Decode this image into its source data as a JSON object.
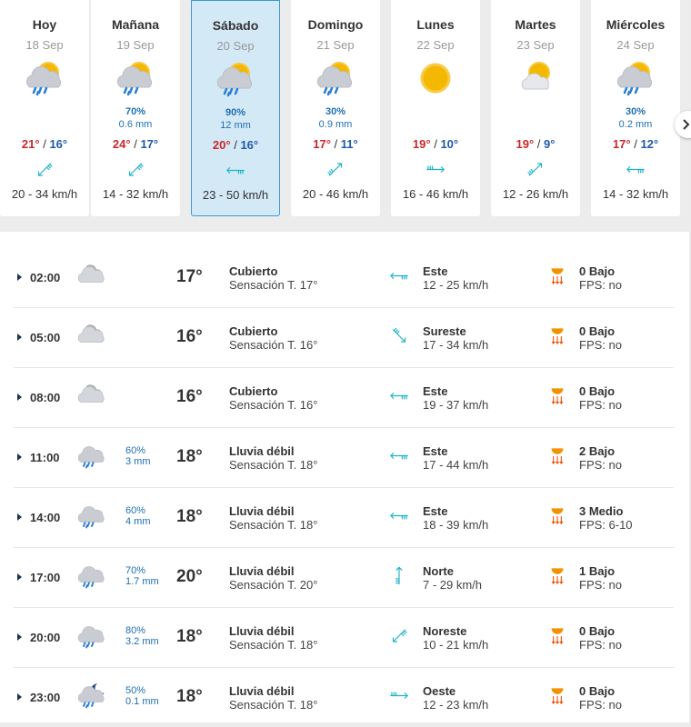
{
  "temp_sep": "/",
  "days": [
    {
      "name": "Hoy",
      "date": "18 Sep",
      "max": "21°",
      "min": "16°",
      "wind": "20 - 34 km/h"
    },
    {
      "name": "Mañana",
      "date": "19 Sep",
      "precip_pct": "70%",
      "precip_mm": "0.6 mm",
      "max": "24°",
      "min": "17°",
      "wind": "14 - 32 km/h"
    },
    {
      "name": "Sábado",
      "date": "20 Sep",
      "precip_pct": "90%",
      "precip_mm": "12 mm",
      "max": "20°",
      "min": "16°",
      "wind": "23 - 50 km/h"
    },
    {
      "name": "Domingo",
      "date": "21 Sep",
      "precip_pct": "30%",
      "precip_mm": "0.9 mm",
      "max": "17°",
      "min": "11°",
      "wind": "20 - 46 km/h"
    },
    {
      "name": "Lunes",
      "date": "22 Sep",
      "max": "19°",
      "min": "10°",
      "wind": "16 - 46 km/h"
    },
    {
      "name": "Martes",
      "date": "23 Sep",
      "max": "19°",
      "min": "9°",
      "wind": "12 - 26 km/h"
    },
    {
      "name": "Miércoles",
      "date": "24 Sep",
      "precip_pct": "30%",
      "precip_mm": "0.2 mm",
      "max": "17°",
      "min": "12°",
      "wind": "14 - 32 km/h"
    }
  ],
  "hours": [
    {
      "time": "02:00",
      "temp": "17°",
      "condition": "Cubierto",
      "feels": "Sensación T. 17°",
      "wind_dir": "Este",
      "wind_speed": "12 - 25 km/h",
      "uv": "0 Bajo",
      "fps": "FPS: no"
    },
    {
      "time": "05:00",
      "temp": "16°",
      "condition": "Cubierto",
      "feels": "Sensación T. 16°",
      "wind_dir": "Sureste",
      "wind_speed": "17 - 34 km/h",
      "uv": "0 Bajo",
      "fps": "FPS: no"
    },
    {
      "time": "08:00",
      "temp": "16°",
      "condition": "Cubierto",
      "feels": "Sensación T. 16°",
      "wind_dir": "Este",
      "wind_speed": "19 - 37 km/h",
      "uv": "0 Bajo",
      "fps": "FPS: no"
    },
    {
      "time": "11:00",
      "precip_pct": "60%",
      "precip_mm": "3 mm",
      "temp": "18°",
      "condition": "Lluvia débil",
      "feels": "Sensación T. 18°",
      "wind_dir": "Este",
      "wind_speed": "17 - 44 km/h",
      "uv": "2 Bajo",
      "fps": "FPS: no"
    },
    {
      "time": "14:00",
      "precip_pct": "60%",
      "precip_mm": "4 mm",
      "temp": "18°",
      "condition": "Lluvia débil",
      "feels": "Sensación T. 18°",
      "wind_dir": "Este",
      "wind_speed": "18 - 39 km/h",
      "uv": "3 Medio",
      "fps": "FPS: 6-10"
    },
    {
      "time": "17:00",
      "precip_pct": "70%",
      "precip_mm": "1.7 mm",
      "temp": "20°",
      "condition": "Lluvia débil",
      "feels": "Sensación T. 20°",
      "wind_dir": "Norte",
      "wind_speed": "7 - 29 km/h",
      "uv": "1 Bajo",
      "fps": "FPS: no"
    },
    {
      "time": "20:00",
      "precip_pct": "80%",
      "precip_mm": "3.2 mm",
      "temp": "18°",
      "condition": "Lluvia débil",
      "feels": "Sensación T. 18°",
      "wind_dir": "Noreste",
      "wind_speed": "10 - 21 km/h",
      "uv": "0 Bajo",
      "fps": "FPS: no"
    },
    {
      "time": "23:00",
      "precip_pct": "50%",
      "precip_mm": "0.1 mm",
      "temp": "18°",
      "condition": "Lluvia débil",
      "feels": "Sensación T. 18°",
      "wind_dir": "Oeste",
      "wind_speed": "12 - 23 km/h",
      "uv": "0 Bajo",
      "fps": "FPS: no"
    }
  ]
}
